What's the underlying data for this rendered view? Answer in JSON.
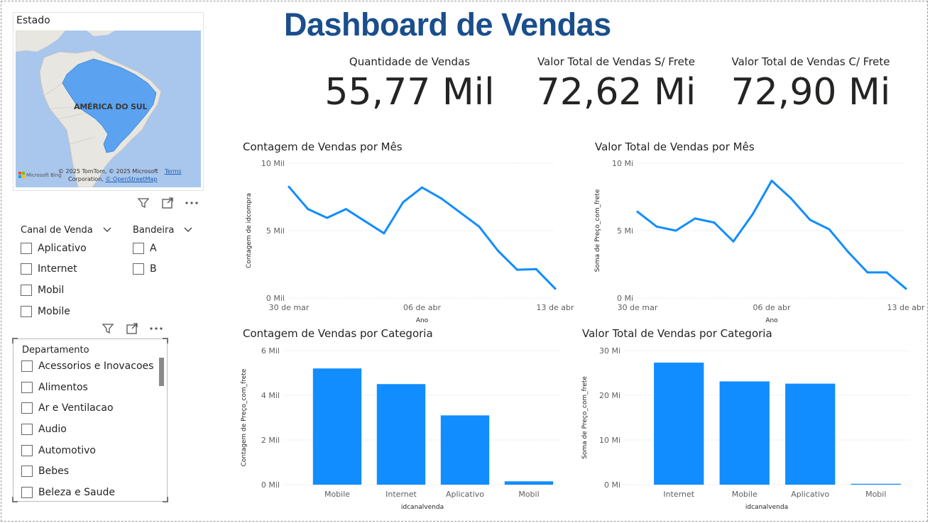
{
  "header": {
    "title": "Dashboard de Vendas"
  },
  "map": {
    "title": "Estado",
    "region_label": "AMÉRICA DO SUL",
    "bing_label": "Microsoft Bing",
    "copyright_line1": "© 2025 TomTom, © 2025 Microsoft",
    "copyright_line2": "Corporation,",
    "osm_link": "© OpenStreetMap",
    "terms_link": "Terms"
  },
  "kpis": [
    {
      "label": "Quantidade de Vendas",
      "value": "55,77 Mil"
    },
    {
      "label": "Valor Total de Vendas S/ Frete",
      "value": "72,62 Mi"
    },
    {
      "label": "Valor Total de Vendas C/ Frete",
      "value": "72,90 Mi"
    }
  ],
  "slicers": {
    "canal": {
      "title": "Canal de Venda",
      "items": [
        "Aplicativo",
        "Internet",
        "Mobil",
        "Mobile"
      ]
    },
    "bandeira": {
      "title": "Bandeira",
      "items": [
        "A",
        "B"
      ]
    },
    "departamento": {
      "title": "Departamento",
      "items": [
        "Acessorios e Inovacoes",
        "Alimentos",
        "Ar e Ventilacao",
        "Audio",
        "Automotivo",
        "Bebes",
        "Beleza e Saude"
      ]
    }
  },
  "colors": {
    "accent": "#118DFF",
    "title": "#1A4E8C",
    "grid": "#D9D9D9"
  },
  "chart_data": [
    {
      "id": "line1",
      "type": "line",
      "title": "Contagem de Vendas por Mês",
      "xlabel": "Ano",
      "ylabel": "Contagem de idcompra",
      "yticks": [
        "0 Mil",
        "5 Mil",
        "10 Mil"
      ],
      "ylim": [
        0,
        10000
      ],
      "xticks": [
        "30 de mar",
        "06 de abr",
        "13 de abr"
      ],
      "x": [
        0,
        1,
        2,
        3,
        4,
        5,
        6,
        7,
        8,
        9,
        10,
        11,
        12,
        13,
        14
      ],
      "values": [
        8250,
        6600,
        5950,
        6600,
        5700,
        4800,
        7100,
        8200,
        7400,
        6350,
        5300,
        3500,
        2100,
        2150,
        700
      ]
    },
    {
      "id": "line2",
      "type": "line",
      "title": "Valor Total de Vendas por Mês",
      "xlabel": "Ano",
      "ylabel": "Soma de Preço_com_frete",
      "yticks": [
        "0 Mi",
        "5 Mi",
        "10 Mi"
      ],
      "ylim": [
        0,
        10
      ],
      "xticks": [
        "30 de mar",
        "06 de abr",
        "13 de abr"
      ],
      "x": [
        0,
        1,
        2,
        3,
        4,
        5,
        6,
        7,
        8,
        9,
        10,
        11,
        12,
        13,
        14
      ],
      "values": [
        6.4,
        5.3,
        5.0,
        5.9,
        5.6,
        4.2,
        6.2,
        8.7,
        7.4,
        5.8,
        5.1,
        3.4,
        1.9,
        1.9,
        0.7
      ]
    },
    {
      "id": "bar1",
      "type": "bar",
      "title": "Contagem de Vendas por Categoria",
      "xlabel": "idcanalvenda",
      "ylabel": "Contagem de Preço_com_frete",
      "yticks": [
        "0 Mil",
        "2 Mil",
        "4 Mil",
        "6 Mil"
      ],
      "ylim": [
        0,
        6000
      ],
      "categories": [
        "Mobile",
        "Internet",
        "Aplicativo",
        "Mobil"
      ],
      "values": [
        5200,
        4500,
        3100,
        150
      ]
    },
    {
      "id": "bar2",
      "type": "bar",
      "title": "Valor Total de Vendas por Categoria",
      "xlabel": "idcanalvenda",
      "ylabel": "Soma de Preço_com_frete",
      "yticks": [
        "0 Mi",
        "10 Mi",
        "20 Mi",
        "30 Mi"
      ],
      "ylim": [
        0,
        30
      ],
      "categories": [
        "Internet",
        "Mobile",
        "Aplicativo",
        "Mobil"
      ],
      "values": [
        27.3,
        23.1,
        22.6,
        0.2
      ]
    }
  ]
}
